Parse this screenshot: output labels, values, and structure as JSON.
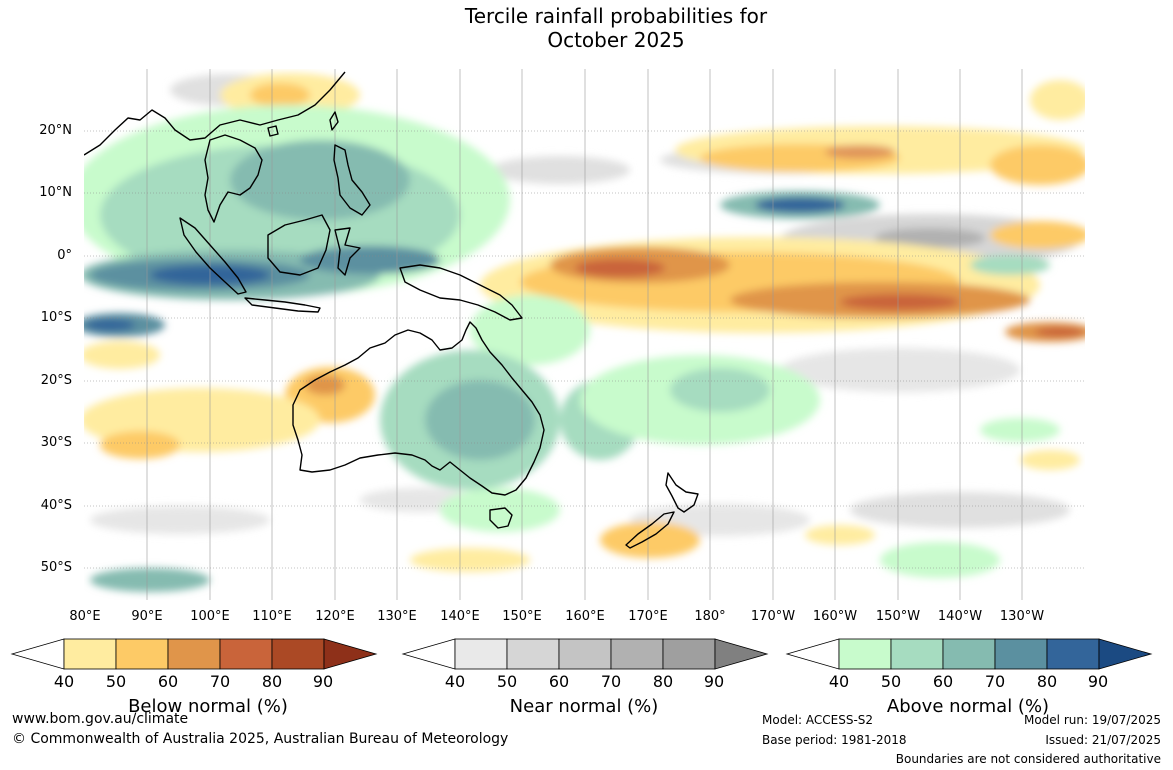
{
  "title": {
    "line1": "Tercile rainfall probabilities for",
    "line2": "October 2025"
  },
  "map": {
    "latitude_labels": [
      "20°N",
      "10°N",
      "0°",
      "10°S",
      "20°S",
      "30°S",
      "40°S",
      "50°S"
    ],
    "longitude_labels": [
      "80°E",
      "90°E",
      "100°E",
      "110°E",
      "120°E",
      "130°E",
      "140°E",
      "150°E",
      "160°E",
      "170°E",
      "180°",
      "170°W",
      "160°W",
      "150°W",
      "140°W",
      "130°W"
    ]
  },
  "legends": [
    {
      "title": "Below normal (%)",
      "ticks": [
        "40",
        "50",
        "60",
        "70",
        "80",
        "90"
      ],
      "colors": [
        "#ffffff",
        "#ffeca0",
        "#fdca66",
        "#e0954a",
        "#c9643a",
        "#ab4925",
        "#8e3019"
      ]
    },
    {
      "title": "Near normal (%)",
      "ticks": [
        "40",
        "50",
        "60",
        "70",
        "80",
        "90"
      ],
      "colors": [
        "#ffffff",
        "#e9e9e9",
        "#d6d6d6",
        "#c4c4c4",
        "#b1b1b1",
        "#9f9f9f",
        "#808080"
      ]
    },
    {
      "title": "Above normal (%)",
      "ticks": [
        "40",
        "50",
        "60",
        "70",
        "80",
        "90"
      ],
      "colors": [
        "#ffffff",
        "#c8fbcc",
        "#a6dcc0",
        "#85bbb0",
        "#5b90a0",
        "#33659a",
        "#1b4a82"
      ]
    }
  ],
  "footer": {
    "website": "www.bom.gov.au/climate",
    "copyright": "© Commonwealth of Australia 2025, Australian Bureau of Meteorology",
    "model": "Model: ACCESS-S2",
    "base_period": "Base period: 1981-2018",
    "model_run": "Model run: 19/07/2025",
    "issued": "Issued: 21/07/2025",
    "disclaimer": "Boundaries are not considered authoritative"
  }
}
